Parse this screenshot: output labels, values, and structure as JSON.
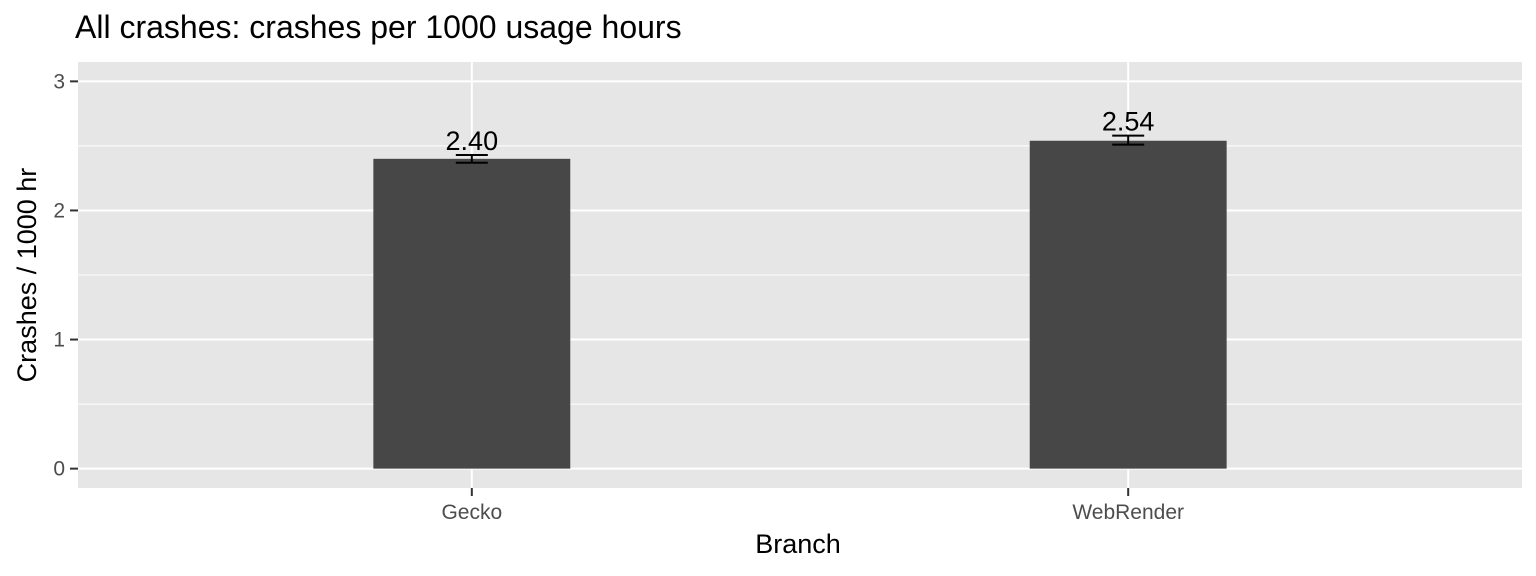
{
  "chart_data": {
    "type": "bar",
    "title": "All crashes: crashes per 1000 usage hours",
    "xlabel": "Branch",
    "ylabel": "Crashes / 1000 hr",
    "categories": [
      "Gecko",
      "WebRender"
    ],
    "values": [
      2.4,
      2.54
    ],
    "value_labels": [
      "2.40",
      "2.54"
    ],
    "error_low": [
      2.37,
      2.51
    ],
    "error_high": [
      2.43,
      2.58
    ],
    "ylim": [
      -0.15,
      3.15
    ],
    "yticks": [
      0,
      1,
      2,
      3
    ],
    "ytick_labels": [
      "0",
      "1",
      "2",
      "3"
    ],
    "grid": true,
    "legend": "none",
    "colors": {
      "bar": "#474747",
      "panel": "#e6e6e6",
      "grid": "#ffffff",
      "errorbar": "#000000"
    }
  }
}
